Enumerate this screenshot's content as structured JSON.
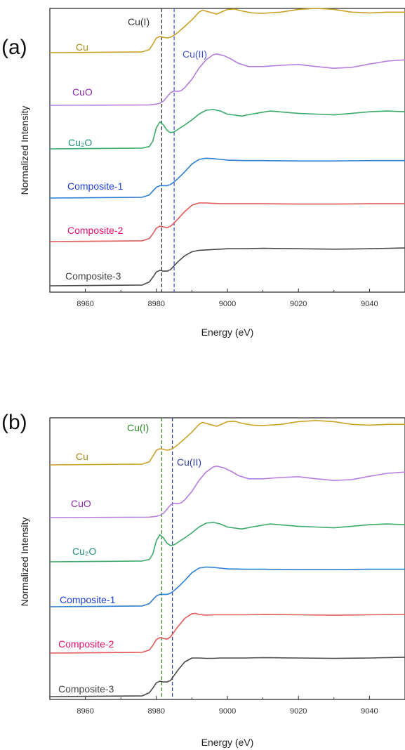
{
  "colors": {
    "cu": "#C9A227",
    "cuo": "#B57EDC",
    "cu2o": "#3DAA6B",
    "composite1": "#2E7FD1",
    "composite2": "#E05858",
    "composite3": "#4A4A4A",
    "label_cu": "#A88A14",
    "label_cuo": "#8E2BA6",
    "label_cu2o": "#1F8F78",
    "label_comp1": "#1E3FD8",
    "label_comp2": "#E0106E",
    "label_comp3": "#444444",
    "ref_a_cu1": "#333333",
    "ref_a_cu2": "#4455DD",
    "ref_b_cu1": "#2E8B2E",
    "ref_b_cu2": "#2F3FA8"
  },
  "chart_data": [
    {
      "type": "line",
      "panel": "(a)",
      "xlabel": "Energy (eV)",
      "ylabel": "Normalized Intensity",
      "xlim": [
        8950,
        9050
      ],
      "xticks": [
        "8960",
        "8980",
        "9000",
        "9020",
        "9040"
      ],
      "reference_lines": [
        {
          "label": "Cu(I)",
          "x": 8981.5
        },
        {
          "label": "Cu(II)",
          "x": 8985
        }
      ],
      "series": [
        {
          "name": "Cu",
          "offset": 5,
          "x": [
            8950,
            8976,
            8978,
            8979,
            8980,
            8981,
            8982,
            8983,
            8984,
            8985,
            8986,
            8988,
            8990,
            8992,
            8993,
            8995,
            8997,
            8999,
            9000,
            9002,
            9004,
            9007,
            9010,
            9015,
            9020,
            9025,
            9030,
            9035,
            9040,
            9045,
            9050
          ],
          "y": [
            0,
            0.02,
            0.08,
            0.22,
            0.38,
            0.42,
            0.4,
            0.38,
            0.4,
            0.45,
            0.52,
            0.68,
            0.85,
            1.05,
            1.1,
            1.05,
            1.0,
            1.08,
            1.12,
            1.13,
            1.08,
            1.03,
            1.02,
            1.05,
            1.12,
            1.15,
            1.12,
            1.05,
            1.03,
            1.05,
            1.05
          ]
        },
        {
          "name": "CuO",
          "offset": 4,
          "x": [
            8950,
            8978,
            8980,
            8981,
            8982,
            8983,
            8984,
            8985,
            8986,
            8987,
            8988,
            8990,
            8992,
            8994,
            8996,
            8997,
            8999,
            9001,
            9003,
            9006,
            9010,
            9015,
            9020,
            9025,
            9030,
            9035,
            9040,
            9045,
            9050
          ],
          "y": [
            0,
            0.01,
            0.03,
            0.05,
            0.1,
            0.2,
            0.3,
            0.34,
            0.33,
            0.35,
            0.42,
            0.62,
            0.88,
            1.08,
            1.2,
            1.22,
            1.18,
            1.1,
            1.0,
            0.92,
            0.92,
            0.95,
            0.97,
            0.92,
            0.88,
            0.9,
            0.98,
            1.05,
            1.08
          ]
        },
        {
          "name": "Cu₂O",
          "offset": 3,
          "x": [
            8950,
            8976,
            8978,
            8979,
            8980,
            8981,
            8982,
            8983,
            8984,
            8985,
            8986,
            8988,
            8990,
            8992,
            8994,
            8996,
            8998,
            9000,
            9004,
            9008,
            9012,
            9016,
            9020,
            9025,
            9030,
            9035,
            9040,
            9045,
            9050
          ],
          "y": [
            0,
            0.02,
            0.06,
            0.2,
            0.55,
            0.7,
            0.62,
            0.48,
            0.42,
            0.44,
            0.5,
            0.62,
            0.75,
            0.9,
            1.0,
            1.02,
            0.98,
            0.9,
            0.85,
            0.92,
            0.98,
            0.95,
            0.92,
            0.9,
            0.88,
            0.92,
            0.96,
            0.98,
            0.96
          ]
        },
        {
          "name": "Composite-1",
          "offset": 2,
          "x": [
            8950,
            8976,
            8978,
            8979,
            8980,
            8981,
            8982,
            8983,
            8984,
            8985,
            8986,
            8988,
            8990,
            8992,
            8994,
            8996,
            8998,
            9000,
            9005,
            9010,
            9020,
            9030,
            9040,
            9050
          ],
          "y": [
            0,
            0.02,
            0.08,
            0.18,
            0.28,
            0.32,
            0.32,
            0.32,
            0.35,
            0.42,
            0.5,
            0.68,
            0.88,
            1.0,
            1.03,
            1.02,
            1.0,
            0.98,
            0.97,
            0.97,
            0.96,
            0.96,
            0.97,
            0.97
          ]
        },
        {
          "name": "Composite-2",
          "offset": 1,
          "x": [
            8950,
            8976,
            8978,
            8979,
            8980,
            8981,
            8982,
            8983,
            8984,
            8985,
            8986,
            8988,
            8990,
            8992,
            8994,
            8996,
            8998,
            9000,
            9005,
            9010,
            9020,
            9030,
            9040,
            9050
          ],
          "y": [
            0,
            0.02,
            0.08,
            0.2,
            0.35,
            0.4,
            0.38,
            0.36,
            0.4,
            0.48,
            0.58,
            0.78,
            0.94,
            1.0,
            1.0,
            0.99,
            0.98,
            0.98,
            0.98,
            0.98,
            0.97,
            0.97,
            0.98,
            0.98
          ]
        },
        {
          "name": "Composite-3",
          "offset": 0,
          "x": [
            8950,
            8976,
            8978,
            8979,
            8980,
            8981,
            8982,
            8983,
            8984,
            8985,
            8986,
            8988,
            8990,
            8992,
            8994,
            8996,
            8998,
            9000,
            9005,
            9010,
            9020,
            9030,
            9040,
            9050
          ],
          "y": [
            0,
            0.02,
            0.1,
            0.22,
            0.36,
            0.4,
            0.38,
            0.38,
            0.42,
            0.52,
            0.62,
            0.78,
            0.88,
            0.92,
            0.93,
            0.94,
            0.95,
            0.96,
            0.96,
            0.97,
            0.96,
            0.95,
            0.96,
            0.98
          ]
        }
      ]
    },
    {
      "type": "line",
      "panel": "(b)",
      "xlabel": "Energy (eV)",
      "ylabel": "Normalized Intensity",
      "xlim": [
        8950,
        9050
      ],
      "xticks": [
        "8960",
        "8980",
        "9000",
        "9020",
        "9040"
      ],
      "reference_lines": [
        {
          "label": "Cu(I)",
          "x": 8981.5
        },
        {
          "label": "Cu(II)",
          "x": 8984.5
        }
      ],
      "series": [
        {
          "name": "Cu",
          "offset": 5,
          "x": [
            8950,
            8976,
            8978,
            8979,
            8980,
            8981,
            8982,
            8983,
            8984,
            8985,
            8986,
            8988,
            8990,
            8992,
            8993,
            8995,
            8997,
            8999,
            9000,
            9002,
            9004,
            9007,
            9010,
            9015,
            9020,
            9025,
            9030,
            9035,
            9040,
            9045,
            9050
          ],
          "y": [
            0,
            0.02,
            0.08,
            0.22,
            0.38,
            0.42,
            0.4,
            0.38,
            0.4,
            0.45,
            0.52,
            0.68,
            0.85,
            1.05,
            1.1,
            1.05,
            1.0,
            1.08,
            1.12,
            1.13,
            1.08,
            1.03,
            1.02,
            1.05,
            1.12,
            1.15,
            1.12,
            1.05,
            1.03,
            1.05,
            1.05
          ]
        },
        {
          "name": "CuO",
          "offset": 4,
          "x": [
            8950,
            8978,
            8980,
            8981,
            8982,
            8983,
            8984,
            8985,
            8986,
            8987,
            8988,
            8990,
            8992,
            8994,
            8996,
            8997,
            8999,
            9001,
            9003,
            9006,
            9010,
            9015,
            9020,
            9025,
            9030,
            9035,
            9040,
            9045,
            9050
          ],
          "y": [
            0,
            0.01,
            0.03,
            0.05,
            0.1,
            0.2,
            0.3,
            0.34,
            0.33,
            0.35,
            0.42,
            0.62,
            0.88,
            1.08,
            1.2,
            1.22,
            1.18,
            1.1,
            1.0,
            0.92,
            0.92,
            0.95,
            0.97,
            0.92,
            0.88,
            0.9,
            0.98,
            1.05,
            1.08
          ]
        },
        {
          "name": "Cu₂O",
          "offset": 3,
          "x": [
            8950,
            8976,
            8978,
            8979,
            8980,
            8981,
            8982,
            8983,
            8984,
            8985,
            8986,
            8988,
            8990,
            8992,
            8994,
            8996,
            8998,
            9000,
            9004,
            9008,
            9012,
            9016,
            9020,
            9025,
            9030,
            9035,
            9040,
            9045,
            9050
          ],
          "y": [
            0,
            0.02,
            0.06,
            0.2,
            0.55,
            0.7,
            0.62,
            0.48,
            0.42,
            0.44,
            0.5,
            0.62,
            0.75,
            0.9,
            1.0,
            1.02,
            0.98,
            0.9,
            0.85,
            0.92,
            0.98,
            0.95,
            0.92,
            0.9,
            0.88,
            0.92,
            0.96,
            0.98,
            0.96
          ]
        },
        {
          "name": "Composite-1",
          "offset": 2,
          "x": [
            8950,
            8976,
            8978,
            8979,
            8980,
            8981,
            8982,
            8983,
            8984,
            8985,
            8986,
            8988,
            8990,
            8992,
            8994,
            8996,
            8998,
            9000,
            9005,
            9010,
            9020,
            9030,
            9040,
            9050
          ],
          "y": [
            0,
            0.02,
            0.08,
            0.18,
            0.28,
            0.32,
            0.32,
            0.32,
            0.35,
            0.42,
            0.5,
            0.68,
            0.88,
            1.0,
            1.03,
            1.02,
            1.0,
            0.98,
            0.97,
            0.97,
            0.96,
            0.96,
            0.97,
            0.97
          ]
        },
        {
          "name": "Composite-2",
          "offset": 1,
          "x": [
            8950,
            8976,
            8978,
            8979,
            8980,
            8981,
            8982,
            8983,
            8984,
            8985,
            8986,
            8988,
            8990,
            8991,
            8992,
            8994,
            8996,
            8998,
            9000,
            9005,
            9010,
            9020,
            9030,
            9040,
            9050
          ],
          "y": [
            0,
            0.02,
            0.08,
            0.2,
            0.35,
            0.4,
            0.38,
            0.36,
            0.42,
            0.55,
            0.68,
            0.9,
            1.02,
            1.03,
            1.0,
            0.98,
            0.99,
            0.99,
            0.99,
            0.99,
            1.0,
            0.99,
            0.98,
            0.99,
            1.0
          ]
        },
        {
          "name": "Composite-3",
          "offset": 0,
          "x": [
            8950,
            8976,
            8978,
            8979,
            8980,
            8981,
            8982,
            8983,
            8984,
            8985,
            8986,
            8988,
            8990,
            8992,
            8994,
            8996,
            8998,
            9000,
            9005,
            9010,
            9020,
            9030,
            9040,
            9050
          ],
          "y": [
            0,
            0.02,
            0.1,
            0.22,
            0.36,
            0.4,
            0.38,
            0.38,
            0.42,
            0.55,
            0.68,
            0.9,
            1.0,
            1.0,
            0.99,
            0.99,
            1.0,
            1.0,
            1.0,
            1.01,
            1.0,
            0.99,
            1.0,
            1.02
          ]
        }
      ]
    }
  ]
}
